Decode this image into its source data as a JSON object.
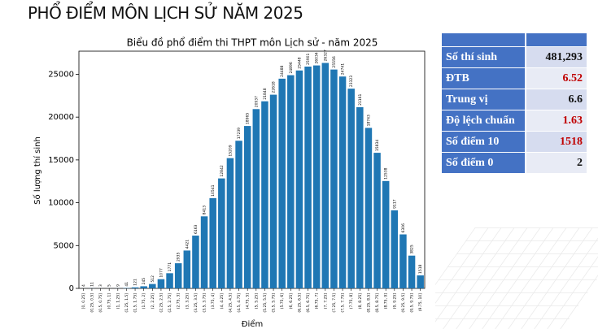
{
  "header": {
    "title": "PHỔ ĐIỂM MÔN LỊCH SỬ NĂM 2025"
  },
  "chart_data": {
    "type": "bar",
    "title": "Biểu đồ phổ điểm thi THPT môn Lịch sử - năm 2025",
    "x_label": "Điểm",
    "y_label": "Số lượng thí sinh",
    "categories": [
      "[0, 0.25]",
      "(0.25, 0.5]",
      "(0.5, 0.75]",
      "(0.75, 1]",
      "(1, 1.25]",
      "(1.25, 1.5]",
      "(1.5, 1.75]",
      "(1.75, 2]",
      "(2, 2.25]",
      "(2.25, 2.5]",
      "(2.5, 2.75]",
      "(2.75, 3]",
      "(3, 3.25]",
      "(3.25, 3.5]",
      "(3.5, 3.75]",
      "(3.75, 4]",
      "(4, 4.25]",
      "(4.25, 4.5]",
      "(4.5, 4.75]",
      "(4.75, 5]",
      "(5, 5.25]",
      "(5.25, 5.5]",
      "(5.5, 5.75]",
      "(5.75, 6]",
      "(6, 6.25]",
      "(6.25, 6.5]",
      "(6.5, 6.75]",
      "(6.75, 7]",
      "(7, 7.25]",
      "(7.25, 7.5]",
      "(7.5, 7.75]",
      "(7.75, 8]",
      "(8, 8.25]",
      "(8.25, 8.5]",
      "(8.5, 8.75]",
      "(8.75, 9]",
      "(9, 9.25]",
      "(9.25, 9.5]",
      "(9.5, 9.75]",
      "(9.75, 10]"
    ],
    "values": [
      4,
      11,
      3,
      5,
      9,
      41,
      121,
      245,
      512,
      1077,
      1771,
      2935,
      4421,
      6163,
      8413,
      10541,
      12842,
      15209,
      17239,
      18965,
      20937,
      21848,
      22618,
      24488,
      24896,
      25448,
      25901,
      26034,
      26327,
      25556,
      24741,
      23323,
      21161,
      18743,
      15834,
      12538,
      9117,
      6306,
      3825,
      1518
    ],
    "color": "#1f77b4",
    "ylim": [
      0,
      27700
    ],
    "yticks": [
      0,
      5000,
      10000,
      15000,
      20000,
      25000
    ]
  },
  "table": {
    "rows": [
      [
        "Số thí sinh",
        "481,293"
      ],
      [
        "ĐTB",
        "6.52"
      ],
      [
        "Trung vị",
        "6.6"
      ],
      [
        "Độ lệch chuẩn",
        "1.63"
      ],
      [
        "Số điểm 10",
        "1518"
      ],
      [
        "Số điểm 0",
        "2"
      ]
    ]
  }
}
